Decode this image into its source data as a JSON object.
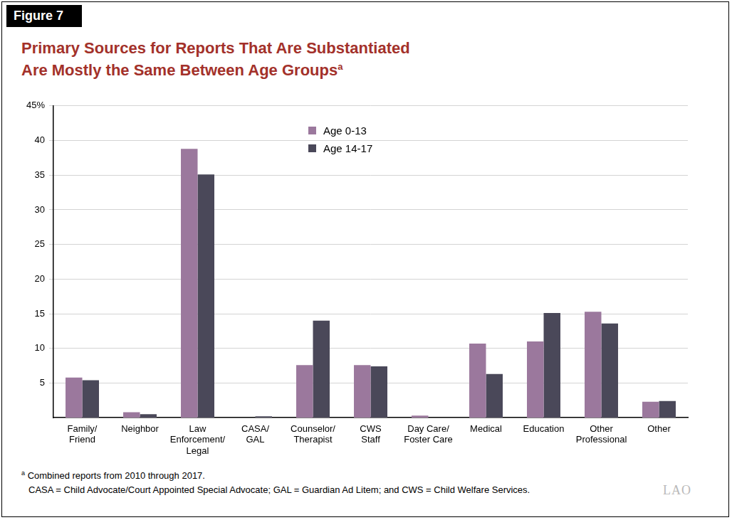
{
  "figure_label": "Figure 7",
  "source_logo": "LAO",
  "footnotes": [
    {
      "marker": "a",
      "text": "Combined reports from 2010 through 2017."
    },
    {
      "text": "CASA = Child Advocate/Court Appointed Special Advocate; GAL = Guardian Ad Litem; and CWS = Child Welfare Services."
    }
  ],
  "chart_data": {
    "type": "bar",
    "title": [
      "Primary Sources for Reports That Are Substantiated",
      "Are Mostly the Same Between Age Groups"
    ],
    "title_marker": "a",
    "categories": [
      [
        "Family/",
        "Friend"
      ],
      [
        "Neighbor"
      ],
      [
        "Law",
        "Enforcement/",
        "Legal"
      ],
      [
        "CASA/",
        "GAL"
      ],
      [
        "Counselor/",
        "Therapist"
      ],
      [
        "CWS",
        "Staff"
      ],
      [
        "Day Care/",
        "Foster Care"
      ],
      [
        "Medical"
      ],
      [
        "Education"
      ],
      [
        "Other",
        "Professional"
      ],
      [
        "Other"
      ]
    ],
    "series": [
      {
        "name": "Age 0-13",
        "color": "#9b789d",
        "values": [
          5.8,
          0.8,
          38.8,
          0,
          7.6,
          7.6,
          0.3,
          10.7,
          11.0,
          15.3,
          2.3
        ]
      },
      {
        "name": "Age 14-17",
        "color": "#4a4859",
        "values": [
          5.4,
          0.5,
          35.1,
          0.2,
          14.0,
          7.4,
          0,
          6.3,
          15.1,
          13.6,
          2.4
        ]
      }
    ],
    "ylim": [
      0,
      45
    ],
    "yticks": [
      5,
      10,
      15,
      20,
      25,
      30,
      35,
      40,
      {
        "value": 45,
        "label": "45%"
      }
    ],
    "grid": true,
    "legend": "upper center"
  }
}
